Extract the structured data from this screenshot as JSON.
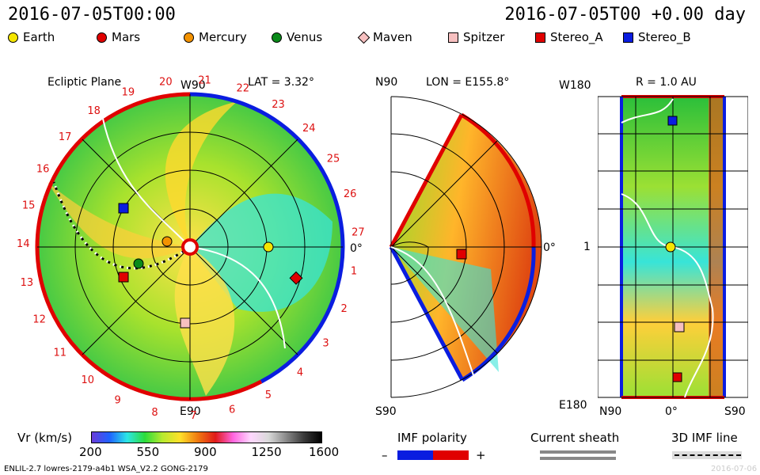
{
  "header": {
    "time_left": "2016-07-05T00:00",
    "time_right": "2016-07-05T00 +0.00 day"
  },
  "legend": [
    {
      "name": "Earth",
      "shape": "circle",
      "color": "#f5e600"
    },
    {
      "name": "Mars",
      "shape": "circle",
      "color": "#e00000"
    },
    {
      "name": "Mercury",
      "shape": "circle",
      "color": "#f39200"
    },
    {
      "name": "Venus",
      "shape": "circle",
      "color": "#0a8a1a"
    },
    {
      "name": "Maven",
      "shape": "diamond",
      "color": "#f7c0c0"
    },
    {
      "name": "Spitzer",
      "shape": "square",
      "color": "#f7c0c0"
    },
    {
      "name": "Stereo_A",
      "shape": "square",
      "color": "#e00000"
    },
    {
      "name": "Stereo_B",
      "shape": "square",
      "color": "#0a1de0"
    }
  ],
  "panel1": {
    "title": "Ecliptic Plane",
    "lat": "LAT = 3.32°",
    "top_label": "W90",
    "bottom_label": "E90",
    "right_label": "0°",
    "carrington_labels": [
      "19",
      "20",
      "21",
      "22",
      "23",
      "24",
      "25",
      "26",
      "27",
      "1",
      "2",
      "3",
      "4",
      "5",
      "6",
      "7",
      "8",
      "9",
      "10",
      "11",
      "12",
      "13",
      "14",
      "15",
      "16",
      "17",
      "18"
    ]
  },
  "panel2": {
    "lon": "LON = E155.8°",
    "top_label": "N90",
    "bottom_label": "S90",
    "right_label": "0°"
  },
  "panel3": {
    "r": "R = 1.0 AU",
    "top_label": "W180",
    "bottom_label": "E180",
    "mid_label": "1",
    "x_labels": [
      "N90",
      "0°",
      "S90"
    ]
  },
  "colorbar": {
    "label": "Vr (km/s)",
    "ticks": [
      "200",
      "550",
      "900",
      "1250",
      "1600"
    ]
  },
  "imf": {
    "title": "IMF polarity",
    "minus": "–",
    "plus": "+"
  },
  "current_sheath": {
    "title": "Current sheath"
  },
  "imf3d": {
    "title": "3D IMF line"
  },
  "footer": {
    "left": "ENLIL-2.7 lowres-2179-a4b1 WSA_V2.2 GONG-2179",
    "right": "2016-07-06"
  },
  "colors": {
    "red": "#e00000",
    "blue": "#0a1de0",
    "yellow": "#f5e600",
    "green": "#2bbf3a",
    "cyan": "#38e4d8"
  }
}
